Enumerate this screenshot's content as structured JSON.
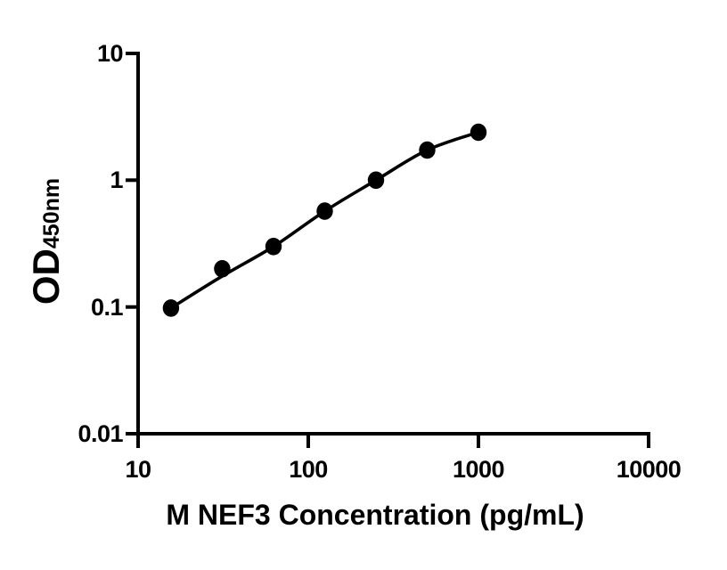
{
  "figure": {
    "background": "#ffffff"
  },
  "chart_data": {
    "type": "scatter",
    "title": "",
    "xlabel": "M NEF3 Concentration (pg/mL)",
    "ylabel": "OD",
    "ylabel_subscript": "450nm",
    "x": [
      15.6,
      31.2,
      62.5,
      125,
      250,
      500,
      1000
    ],
    "y": [
      0.098,
      0.2,
      0.3,
      0.57,
      1.0,
      1.73,
      2.39
    ],
    "fit_y": [
      0.098,
      0.175,
      0.3,
      0.57,
      1.0,
      1.73,
      2.39
    ],
    "x_scale": "log",
    "y_scale": "log",
    "xlim": [
      10,
      10000
    ],
    "ylim": [
      0.01,
      10
    ],
    "x_ticks": [
      10,
      100,
      1000,
      10000
    ],
    "x_tick_labels": [
      "10",
      "100",
      "1000",
      "10000"
    ],
    "y_ticks": [
      10,
      1,
      0.1,
      0.01
    ],
    "y_tick_labels": [
      "10",
      "1",
      "0.1",
      "0.01"
    ],
    "grid": false,
    "legend": "none",
    "marker": "filled-circle",
    "marker_color": "#000000",
    "line_color": "#000000",
    "axis_color": "#000000"
  }
}
